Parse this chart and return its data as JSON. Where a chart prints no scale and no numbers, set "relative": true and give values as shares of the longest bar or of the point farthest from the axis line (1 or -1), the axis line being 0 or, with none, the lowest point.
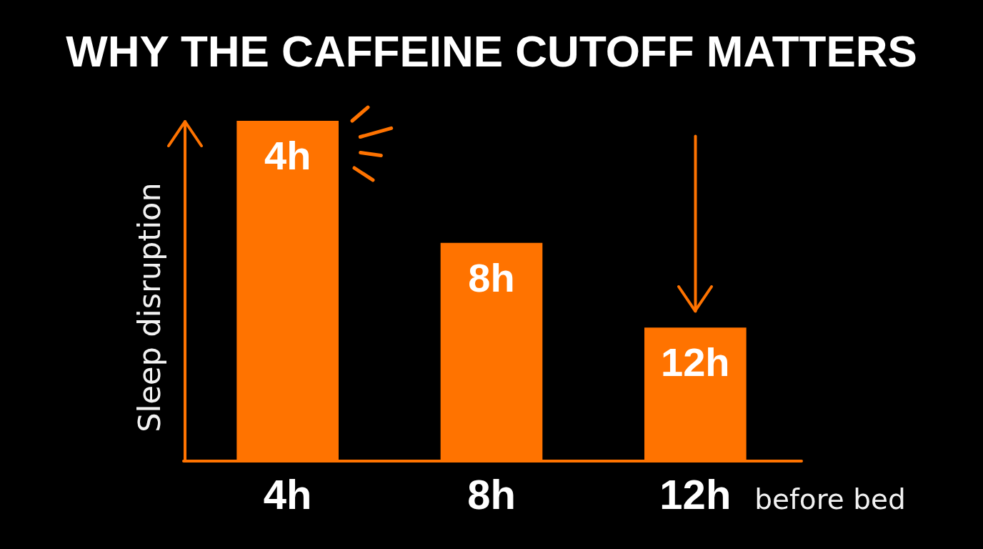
{
  "chart_data": {
    "type": "bar",
    "title": "WHY THE CAFFEINE CUTOFF MATTERS",
    "xlabel": "before bed",
    "ylabel": "Sleep disruption",
    "categories": [
      "4h",
      "8h",
      "12h"
    ],
    "values": [
      1,
      0.64,
      0.39
    ],
    "color": "#ff7300",
    "relative": true,
    "annotations": [
      "4h",
      "8h",
      "12h"
    ]
  }
}
